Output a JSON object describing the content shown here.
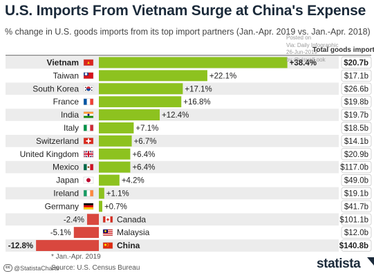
{
  "title": "U.S. Imports From Vietnam Surge at China's Expense",
  "subtitle": "% change in U.S. goods imports from its top import partners (Jan.-Apr. 2019 vs. Jan.-Apr. 2018)",
  "watermark": [
    "Posted on",
    "Via: Daily Infographic",
    "26-Jun-2019",
    "by @visualLook"
  ],
  "total_header": "Total goods imports*",
  "footnote": "* Jan.-Apr. 2019",
  "source": "Source: U.S. Census Bureau",
  "handle": "@StatistaCharts",
  "logo": "statista",
  "colors": {
    "positive": "#8dc21f",
    "negative": "#d9473e",
    "row_band": "#ececec",
    "text": "#222222"
  },
  "chart_data": {
    "type": "bar",
    "categories": [
      "Vietnam",
      "Taiwan",
      "South Korea",
      "France",
      "India",
      "Italy",
      "Switzerland",
      "United Kingdom",
      "Mexico",
      "Japan",
      "Ireland",
      "Germany",
      "Canada",
      "Malaysia",
      "China"
    ],
    "values": [
      38.4,
      22.1,
      17.1,
      16.8,
      12.4,
      7.1,
      6.7,
      6.4,
      6.4,
      4.2,
      1.1,
      0.7,
      -2.4,
      -5.1,
      -12.8
    ],
    "labels": [
      "+38.4%",
      "+22.1%",
      "+17.1%",
      "+16.8%",
      "+12.4%",
      "+7.1%",
      "+6.7%",
      "+6.4%",
      "+6.4%",
      "+4.2%",
      "+1.1%",
      "+0.7%",
      "-2.4%",
      "-5.1%",
      "-12.8%"
    ],
    "totals": [
      "$20.7b",
      "$17.1b",
      "$26.6b",
      "$19.8b",
      "$19.7b",
      "$18.5b",
      "$14.1b",
      "$20.9b",
      "$117.0b",
      "$49.0b",
      "$19.1b",
      "$41.7b",
      "$101.1b",
      "$12.0b",
      "$140.8b"
    ],
    "flags": [
      "vietnam-flag",
      "taiwan-flag",
      "south-korea-flag",
      "france-flag",
      "india-flag",
      "italy-flag",
      "switzerland-flag",
      "united-kingdom-flag",
      "mexico-flag",
      "japan-flag",
      "ireland-flag",
      "germany-flag",
      "canada-flag",
      "malaysia-flag",
      "china-flag"
    ],
    "bold_rows": [
      "Vietnam",
      "China"
    ],
    "xlim": [
      -12.8,
      38.4
    ],
    "grid": false,
    "legend": "none"
  }
}
